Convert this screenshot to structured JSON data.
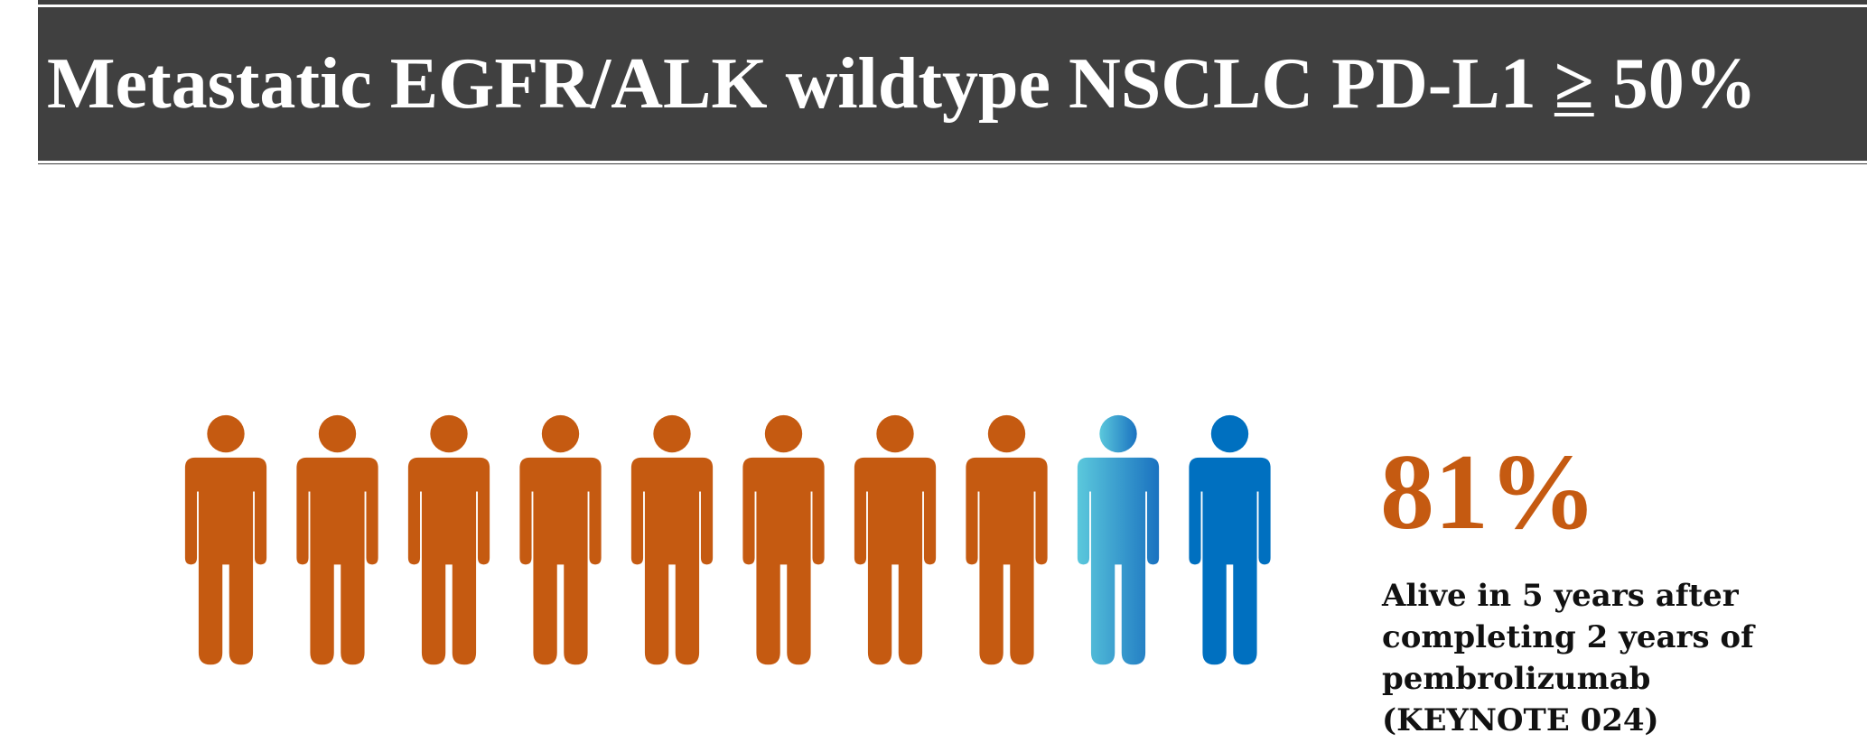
{
  "title": {
    "text_before": "Metastatic EGFR/ALK wildtype NSCLC PD-L1 ",
    "symbol": "≥",
    "text_after": " 50%"
  },
  "infographic": {
    "total_figures": 10,
    "highlighted_figures": 8,
    "colors": {
      "highlighted": "#c55a11",
      "gradient_start": "#5bc8dc",
      "gradient_end": "#1a72c0",
      "other": "#0070c0"
    }
  },
  "stat": {
    "value": "81%"
  },
  "caption": {
    "lines": [
      "Alive in 5 years after",
      "completing 2 years of",
      "pembrolizumab",
      "(KEYNOTE 024)"
    ]
  }
}
